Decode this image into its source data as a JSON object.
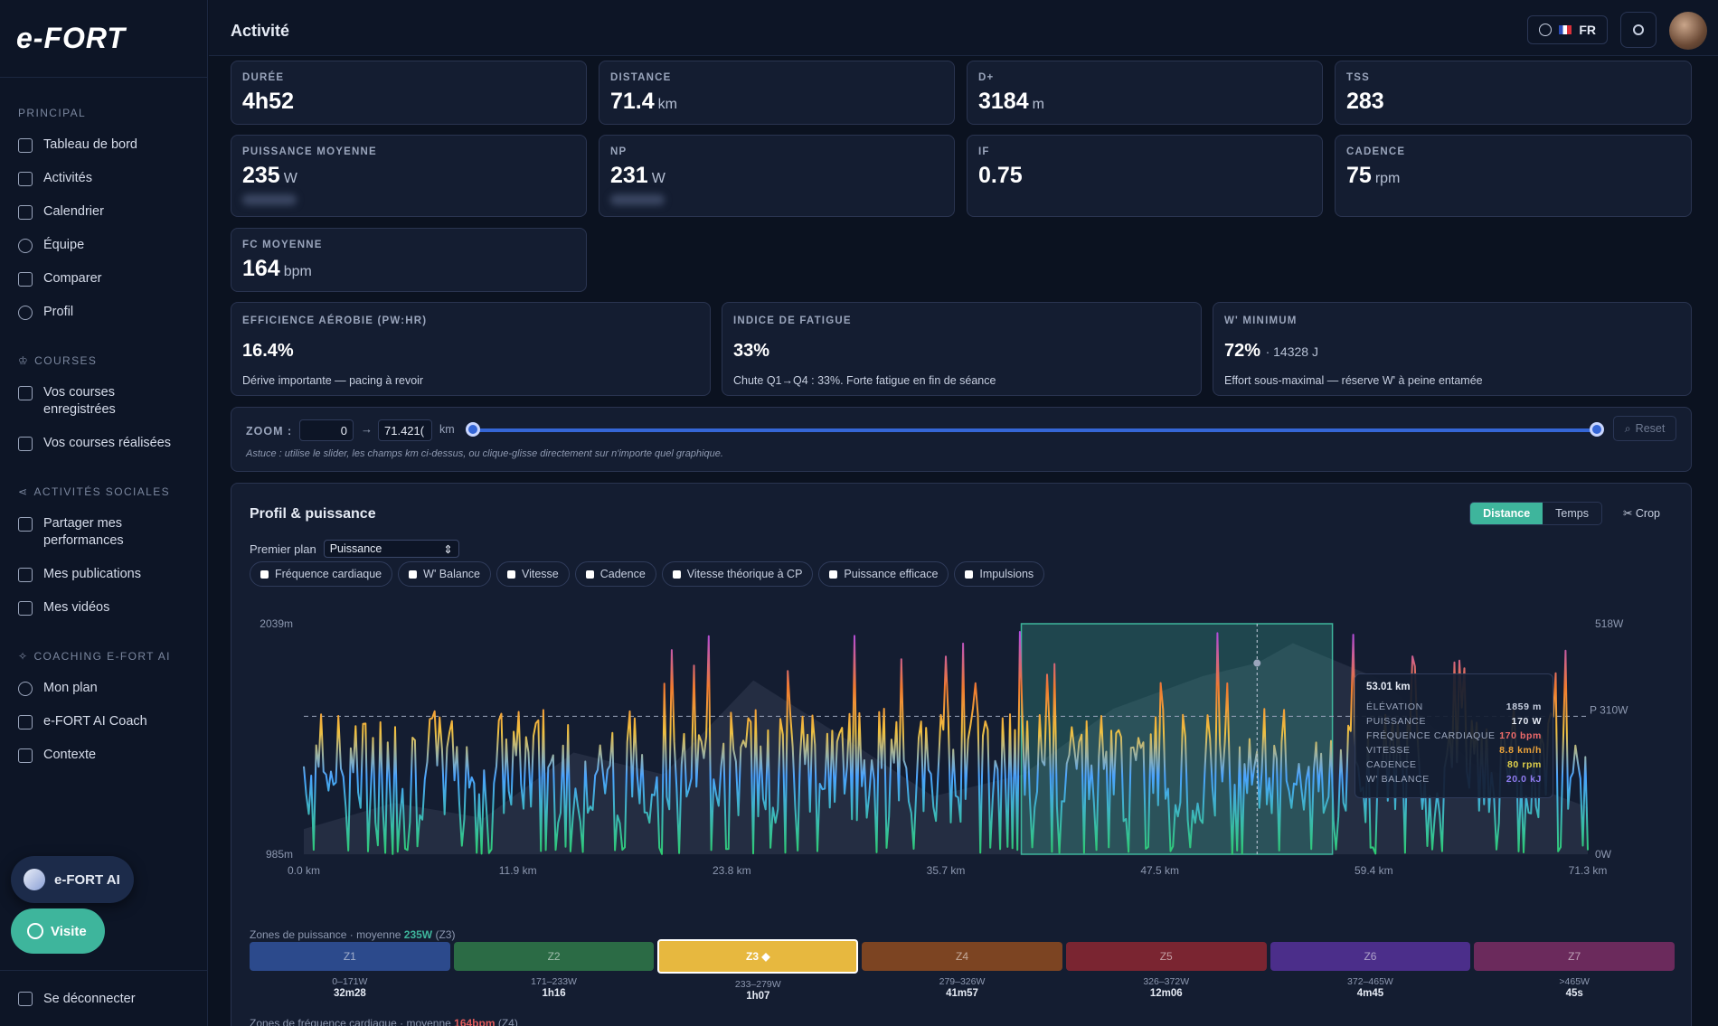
{
  "brand": {
    "logo": "e-FORT"
  },
  "sidebar": {
    "sections": [
      {
        "title": "PRINCIPAL",
        "items": [
          "Tableau de bord",
          "Activités",
          "Calendrier",
          "Équipe",
          "Comparer",
          "Profil"
        ]
      },
      {
        "title": "COURSES",
        "items": [
          "Vos courses enregistrées",
          "Vos courses réalisées"
        ]
      },
      {
        "title": "ACTIVITÉS SOCIALES",
        "items": [
          "Partager mes performances",
          "Mes publications",
          "Mes vidéos"
        ]
      },
      {
        "title": "COACHING E-FORT AI",
        "items": [
          "Mon plan",
          "e-FORT AI Coach",
          "Contexte"
        ]
      }
    ],
    "ai_button": "e-FORT AI",
    "visit_button": "Visite",
    "logout": "Se déconnecter"
  },
  "header": {
    "title": "Activité",
    "language": "FR"
  },
  "stats": [
    {
      "label": "DURÉE",
      "value": "4h52",
      "unit": ""
    },
    {
      "label": "DISTANCE",
      "value": "71.4",
      "unit": "km"
    },
    {
      "label": "D+",
      "value": "3184",
      "unit": "m"
    },
    {
      "label": "TSS",
      "value": "283",
      "unit": ""
    },
    {
      "label": "PUISSANCE MOYENNE",
      "value": "235",
      "unit": "W"
    },
    {
      "label": "NP",
      "value": "231",
      "unit": "W"
    },
    {
      "label": "IF",
      "value": "0.75",
      "unit": ""
    },
    {
      "label": "CADENCE",
      "value": "75",
      "unit": "rpm"
    },
    {
      "label": "FC MOYENNE",
      "value": "164",
      "unit": "bpm"
    }
  ],
  "efficiency": [
    {
      "label": "EFFICIENCE AÉROBIE (PW:HR)",
      "value": "16.4%",
      "extra": "",
      "note": "Dérive importante — pacing à revoir"
    },
    {
      "label": "INDICE DE FATIGUE",
      "value": "33%",
      "extra": "",
      "note": "Chute Q1→Q4 : 33%. Forte fatigue en fin de séance"
    },
    {
      "label": "W' MINIMUM",
      "value": "72%",
      "extra": "· 14328 J",
      "note": "Effort sous-maximal — réserve W' à peine entamée"
    }
  ],
  "zoom": {
    "label": "ZOOM :",
    "from": "0",
    "to": "71.421(",
    "unit": "km",
    "arrow": "→",
    "reset": "Reset",
    "hint": "Astuce : utilise le slider, les champs km ci-dessus, ou clique-glisse directement sur n'importe quel graphique.",
    "range_fraction": [
      0,
      1
    ]
  },
  "panel": {
    "title": "Profil & puissance",
    "toggle": [
      "Distance",
      "Temps"
    ],
    "active_toggle": "Distance",
    "crop": "Crop",
    "foreground_label": "Premier plan",
    "foreground_value": "Puissance",
    "chips": [
      "Fréquence cardiaque",
      "W' Balance",
      "Vitesse",
      "Cadence",
      "Vitesse théorique à CP",
      "Puissance efficace",
      "Impulsions"
    ]
  },
  "chart_data": {
    "type": "line",
    "x_unit": "km",
    "xlim": [
      0,
      71.4
    ],
    "x_ticks": [
      "0.0 km",
      "11.9 km",
      "23.8 km",
      "35.7 km",
      "47.5 km",
      "59.4 km",
      "71.3 km"
    ],
    "y_left_labels": [
      "2039m",
      "985m"
    ],
    "y_right_labels": [
      "518W",
      "0W"
    ],
    "cp_label": "P 310W",
    "cp_value": 310,
    "elevation_range": [
      985,
      2039
    ],
    "power_range": [
      0,
      518
    ],
    "selection_km": [
      39.9,
      57.2
    ],
    "cursor_km": 53.01,
    "tooltip": {
      "title": "53.01 km",
      "rows": [
        {
          "label": "ÉLÉVATION",
          "value": "1859 m",
          "color": "#c7cfe0"
        },
        {
          "label": "PUISSANCE",
          "value": "170 W",
          "color": "#e6ebf5"
        },
        {
          "label": "FRÉQUENCE CARDIAQUE",
          "value": "170 bpm",
          "color": "#f06b6b"
        },
        {
          "label": "VITESSE",
          "value": "8.8 km/h",
          "color": "#f0a53a"
        },
        {
          "label": "CADENCE",
          "value": "80 rpm",
          "color": "#e3d24a"
        },
        {
          "label": "W' BALANCE",
          "value": "20.0 kJ",
          "color": "#8f7bf0"
        }
      ]
    },
    "series": [
      {
        "name": "Élévation",
        "values_km": [
          0,
          5,
          10,
          15,
          20,
          25,
          30,
          35,
          40,
          45,
          50,
          53,
          55,
          60,
          65,
          71.4
        ],
        "values": [
          1100,
          1220,
          1150,
          1450,
          1350,
          1780,
          1520,
          1250,
          1350,
          1650,
          1800,
          1859,
          1950,
          1780,
          1400,
          1200
        ]
      }
    ]
  },
  "power_zones": {
    "label": "Zones de puissance · moyenne",
    "avg": "235W",
    "avg_zone": "(Z3)",
    "zones": [
      {
        "name": "Z1",
        "range": "0–171W",
        "time": "32m28",
        "color": "#2c4a8c"
      },
      {
        "name": "Z2",
        "range": "171–233W",
        "time": "1h16",
        "color": "#2b6b45"
      },
      {
        "name": "Z3 ◆",
        "range": "233–279W",
        "time": "1h07",
        "color": "#e7b83f",
        "active": true
      },
      {
        "name": "Z4",
        "range": "279–326W",
        "time": "41m57",
        "color": "#7c4422"
      },
      {
        "name": "Z5",
        "range": "326–372W",
        "time": "12m06",
        "color": "#7a2531"
      },
      {
        "name": "Z6",
        "range": "372–465W",
        "time": "4m45",
        "color": "#4b2e8a"
      },
      {
        "name": "Z7",
        "range": ">465W",
        "time": "45s",
        "color": "#6b2a5c"
      }
    ]
  },
  "hr_zones": {
    "label": "Zones de fréquence cardiaque · moyenne",
    "avg": "164bpm",
    "avg_zone": "(Z4)"
  }
}
